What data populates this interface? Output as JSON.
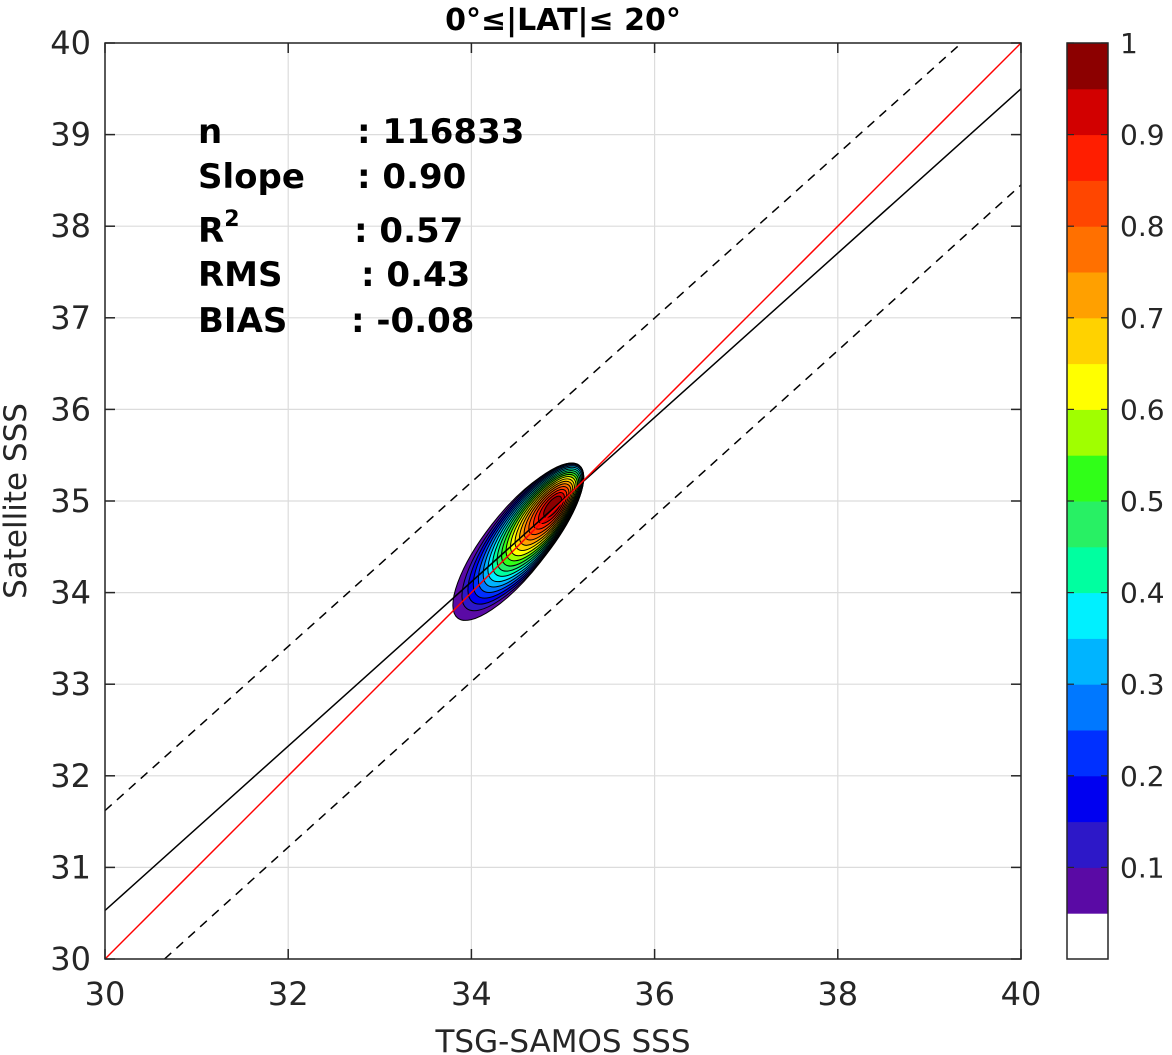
{
  "chart_data": {
    "type": "contour",
    "title": "0°≤|LAT|≤ 20°",
    "xlabel": "TSG-SAMOS SSS",
    "ylabel": "Satellite SSS",
    "xlim": [
      30,
      40
    ],
    "ylim": [
      30,
      40
    ],
    "xticks": [
      "30",
      "32",
      "34",
      "36",
      "38",
      "40"
    ],
    "yticks": [
      "30",
      "31",
      "32",
      "33",
      "34",
      "35",
      "36",
      "37",
      "38",
      "39",
      "40"
    ],
    "grid": true,
    "stats": [
      {
        "key": "n",
        "value": ": 116833"
      },
      {
        "key": "Slope",
        "value": ": 0.90"
      },
      {
        "key": "R",
        "sup": "2",
        "value": ": 0.57"
      },
      {
        "key": "RMS",
        "value": ": 0.43"
      },
      {
        "key": "BIAS",
        "value": ": -0.08"
      }
    ],
    "lines": {
      "one_to_one": {
        "color": "#ff0000",
        "x": [
          30,
          40
        ],
        "y": [
          30,
          40
        ]
      },
      "fit": {
        "color": "#000000",
        "x": [
          30,
          40
        ],
        "y": [
          30.53,
          39.5
        ]
      },
      "upper_dashed": {
        "color": "#000000",
        "x": [
          30,
          39.35
        ],
        "y": [
          31.62,
          40
        ]
      },
      "lower_dashed": {
        "color": "#000000",
        "x": [
          30.65,
          40
        ],
        "y": [
          30,
          38.45
        ]
      }
    },
    "density_contours": {
      "center": [
        34.9,
        34.95
      ],
      "levels": [
        0.05,
        0.1,
        0.15,
        0.2,
        0.25,
        0.3,
        0.35,
        0.4,
        0.45,
        0.5,
        0.55,
        0.6,
        0.65,
        0.7,
        0.75,
        0.8,
        0.85,
        0.9,
        0.95
      ]
    },
    "colorbar": {
      "range": [
        0,
        1
      ],
      "tick_labels": [
        "0.1",
        "0.2",
        "0.3",
        "0.4",
        "0.5",
        "0.6",
        "0.7",
        "0.8",
        "0.9",
        "1"
      ],
      "tick_values": [
        0.1,
        0.2,
        0.3,
        0.4,
        0.5,
        0.6,
        0.7,
        0.8,
        0.9,
        1.0
      ],
      "colors": [
        "#ffffff",
        "#5a0aa5",
        "#2d18c8",
        "#0000f0",
        "#0030ff",
        "#0078ff",
        "#00b4ff",
        "#00f0ff",
        "#00ffa0",
        "#28f064",
        "#30ff18",
        "#a0ff00",
        "#ffff00",
        "#ffd200",
        "#ffa000",
        "#ff7000",
        "#ff4600",
        "#ff1e00",
        "#d20000",
        "#8c0000"
      ]
    }
  }
}
